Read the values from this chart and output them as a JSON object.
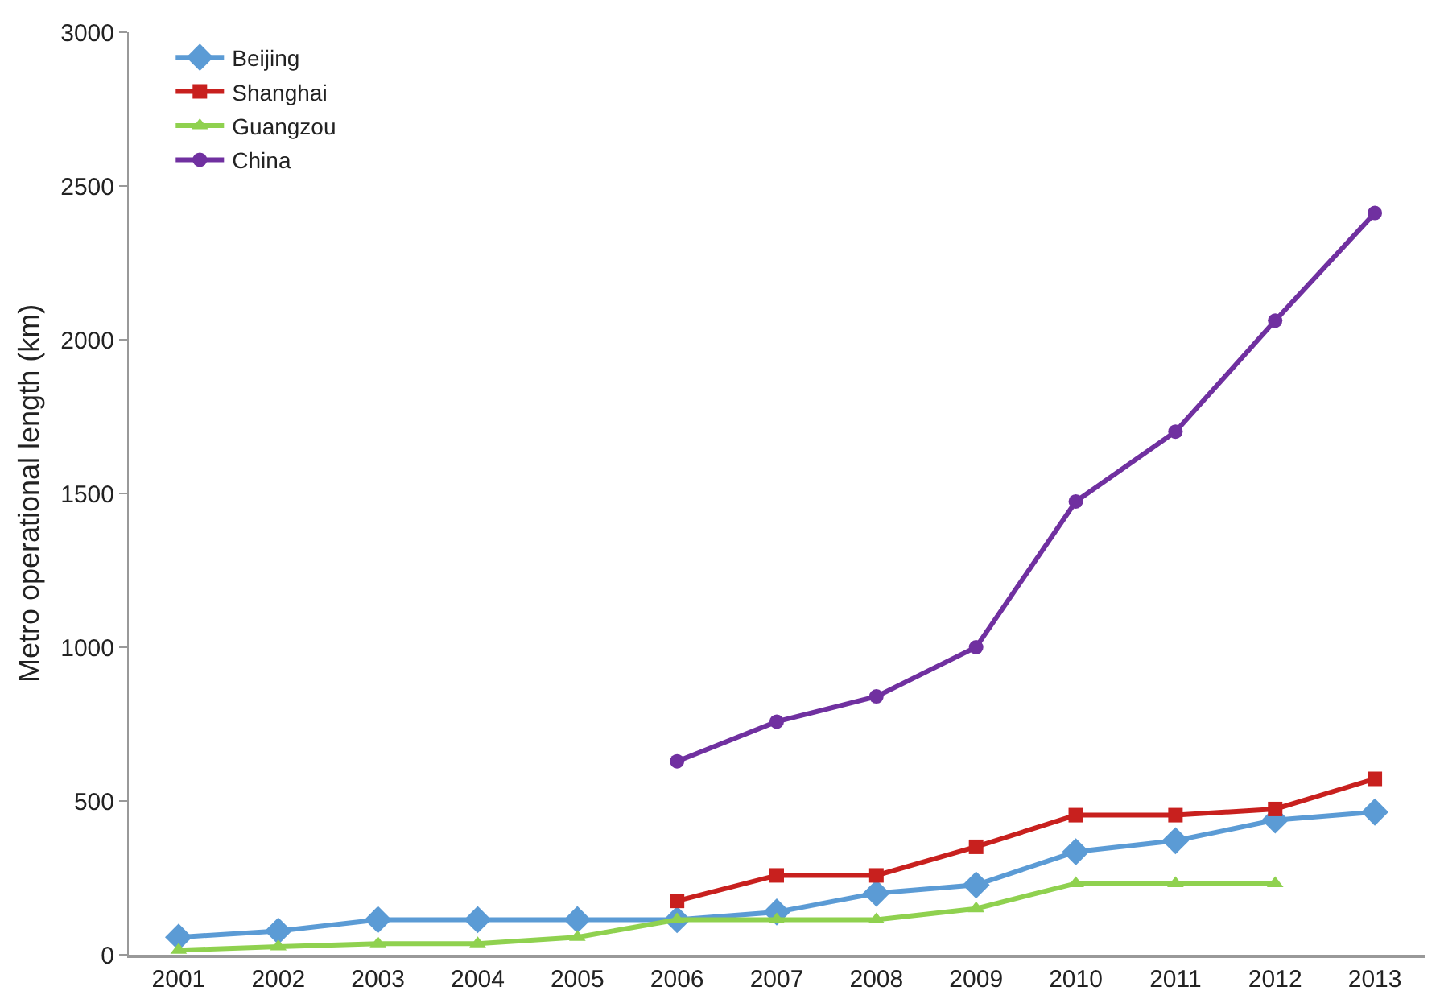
{
  "chart_data": {
    "type": "line",
    "ylabel": "Metro operational length (km)",
    "categories": [
      "2001",
      "2002",
      "2003",
      "2004",
      "2005",
      "2006",
      "2007",
      "2008",
      "2009",
      "2010",
      "2011",
      "2012",
      "2013"
    ],
    "ylim": [
      0,
      3000
    ],
    "yticks": [
      0,
      500,
      1000,
      1500,
      2000,
      2500,
      3000
    ],
    "grid": false,
    "legend": "top left",
    "series": [
      {
        "name": "Beijing",
        "color": "#5b9bd5",
        "marker": "diamond",
        "values": [
          57,
          77,
          114,
          114,
          114,
          114,
          139,
          200,
          227,
          335,
          371,
          438,
          464
        ]
      },
      {
        "name": "Shanghai",
        "color": "#c8201e",
        "marker": "square",
        "values": [
          null,
          null,
          null,
          null,
          null,
          175,
          258,
          258,
          351,
          454,
          454,
          474,
          572
        ]
      },
      {
        "name": "Guangzou",
        "color": "#8fd14f",
        "marker": "triangle",
        "values": [
          15,
          26,
          36,
          36,
          57,
          114,
          114,
          114,
          150,
          232,
          232,
          232,
          null
        ]
      },
      {
        "name": "China",
        "color": "#7030a0",
        "marker": "circle",
        "values": [
          null,
          null,
          null,
          null,
          null,
          629,
          758,
          840,
          1000,
          1474,
          1701,
          2062,
          2412
        ]
      }
    ]
  }
}
